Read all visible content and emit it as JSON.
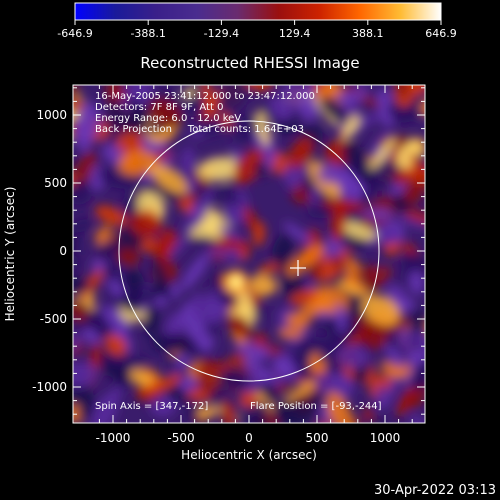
{
  "colorbar": {
    "ticks": [
      "-646.9",
      "-388.1",
      "-129.4",
      "129.4",
      "388.1",
      "646.9"
    ],
    "gradient": [
      "#0000ff",
      "#1a1a9a",
      "#3a1f8a",
      "#4a2c8f",
      "#6a2b6f",
      "#9a0f0f",
      "#cc2200",
      "#ff6600",
      "#ffbb33",
      "#ffffff"
    ]
  },
  "plot": {
    "title": "Reconstructed RHESSI Image",
    "xlabel": "Heliocentric X (arcsec)",
    "ylabel": "Heliocentric Y (arcsec)",
    "xticks": [
      "-1000",
      "-500",
      "0",
      "500",
      "1000"
    ],
    "yticks": [
      "1000",
      "500",
      "0",
      "-500",
      "-1000"
    ],
    "info_lines": [
      "16-May-2005 23:41:12.000 to 23:47:12.000",
      "Detectors: 7F 8F 9F, Att 0",
      "Energy Range: 6.0 - 12.0 keV",
      "Back Projection     Total counts: 1.64E+03"
    ],
    "spin_axis": "Spin Axis = [347,-172]",
    "flare_position": "Flare Position = [-93,-244]"
  },
  "footer": {
    "timestamp": "30-Apr-2022 03:13"
  }
}
